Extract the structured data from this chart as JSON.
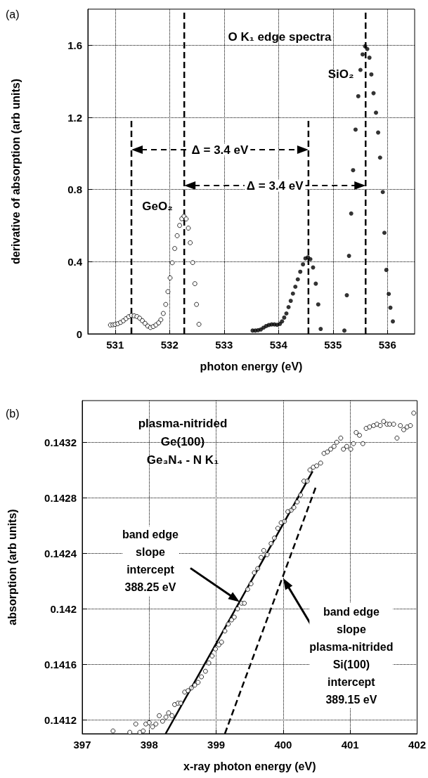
{
  "chart_data": [
    {
      "type": "scatter",
      "title": "O K₁ edge spectra",
      "xlabel": "photon energy (eV)",
      "ylabel": "derivative of absorption (arb units)",
      "xlim": [
        530.5,
        536.5
      ],
      "xticks": [
        531,
        532,
        533,
        534,
        535,
        536
      ],
      "ylim": [
        0,
        1.8
      ],
      "yticks": [
        0,
        0.4,
        0.8,
        1.2,
        1.6
      ],
      "grid": true,
      "marker": "circle",
      "annotations": [
        "(a)",
        "Δ = 3.4 eV",
        "Δ = 3.4 eV"
      ],
      "series": [
        {
          "name": "GeO₂",
          "color": "#000000",
          "x": [
            530.915,
            530.96,
            531.0,
            531.05,
            531.1,
            531.15,
            531.2,
            531.25,
            531.3,
            531.35,
            531.4,
            531.45,
            531.5,
            531.55,
            531.6,
            531.65,
            531.7,
            531.75,
            531.8,
            531.84,
            531.885,
            531.93,
            531.97,
            532.01,
            532.05,
            532.095,
            532.14,
            532.185,
            532.225,
            532.265,
            532.305,
            532.345,
            532.38,
            532.425,
            532.465,
            532.495,
            532.54
          ],
          "values": [
            0.049,
            0.05,
            0.052,
            0.056,
            0.063,
            0.072,
            0.084,
            0.095,
            0.102,
            0.1,
            0.096,
            0.087,
            0.073,
            0.058,
            0.043,
            0.035,
            0.04,
            0.049,
            0.061,
            0.078,
            0.113,
            0.163,
            0.234,
            0.31,
            0.394,
            0.473,
            0.544,
            0.601,
            0.638,
            0.652,
            0.637,
            0.586,
            0.505,
            0.395,
            0.278,
            0.163,
            0.053
          ]
        },
        {
          "name": "SiO₂",
          "color": "#000000",
          "x": [
            533.525,
            533.575,
            533.625,
            533.675,
            533.725,
            533.775,
            533.825,
            533.875,
            533.925,
            533.975,
            534.025,
            534.065,
            534.105,
            534.145,
            534.185,
            534.225,
            534.265,
            534.31,
            534.355,
            534.4,
            534.45,
            534.495,
            534.54,
            534.585,
            534.635,
            534.685,
            534.73,
            534.775,
            535.21,
            535.255,
            535.295,
            535.335,
            535.37,
            535.415,
            535.465,
            535.505,
            535.545,
            535.59,
            535.63,
            535.67,
            535.705,
            535.745,
            535.79,
            535.83,
            535.865,
            535.915,
            535.945,
            535.98,
            536.025,
            536.055,
            536.1
          ],
          "values": [
            0.018,
            0.018,
            0.02,
            0.024,
            0.034,
            0.043,
            0.049,
            0.052,
            0.052,
            0.05,
            0.055,
            0.069,
            0.09,
            0.113,
            0.148,
            0.183,
            0.223,
            0.261,
            0.302,
            0.344,
            0.385,
            0.418,
            0.424,
            0.414,
            0.368,
            0.278,
            0.163,
            0.027,
            0.018,
            0.214,
            0.432,
            0.667,
            0.907,
            1.132,
            1.317,
            1.463,
            1.549,
            1.594,
            1.579,
            1.531,
            1.438,
            1.334,
            1.226,
            1.116,
            0.977,
            0.786,
            0.56,
            0.354,
            0.221,
            0.145,
            0.069
          ]
        },
        {
          "type": "line",
          "color": "#000000",
          "marker": "none",
          "line_style": "dashed",
          "x": [
            531.3,
            531.3
          ],
          "values": [
            0,
            1.2
          ]
        },
        {
          "type": "line",
          "color": "#000000",
          "marker": "none",
          "line_style": "dashed",
          "x": [
            532.27,
            532.27
          ],
          "values": [
            0,
            1.8
          ]
        },
        {
          "type": "line",
          "color": "#000000",
          "marker": "none",
          "line_style": "dashed",
          "x": [
            534.55,
            534.55
          ],
          "values": [
            0,
            1.2
          ]
        },
        {
          "type": "line",
          "color": "#000000",
          "marker": "none",
          "line_style": "dashed",
          "x": [
            535.6,
            535.6
          ],
          "values": [
            0,
            1.8
          ]
        }
      ]
    },
    {
      "type": "scatter",
      "title": "plasma-nitrided\nGe(100)\nGe₃N₄ - N K₁",
      "xlabel": "x-ray photon energy (eV)",
      "ylabel": "absorption (arb units)",
      "xlim": [
        397,
        402
      ],
      "xticks": [
        397,
        398,
        399,
        400,
        401,
        402
      ],
      "ylim": [
        0.1411,
        0.1435
      ],
      "yticks": [
        0.1412,
        0.1416,
        0.142,
        0.1424,
        0.1428,
        0.1432
      ],
      "grid": true,
      "marker": "circle",
      "annotations": [
        "(b)",
        {
          "text": "band edge\nslope\nintercept\n388.25 eV",
          "x": 399.35,
          "y": 0.14205
        },
        {
          "text": "band edge\nslope\nplasma-nitrided\nSi(100)\nintercept\n389.15 eV",
          "x": 400.0,
          "y": 0.14222
        }
      ],
      "series": [
        {
          "color": "#000000",
          "x": [
            397.46,
            397.71,
            397.8,
            397.86,
            397.91,
            397.95,
            398.0,
            398.05,
            398.1,
            398.15,
            398.2,
            398.25,
            398.29,
            398.34,
            398.38,
            398.43,
            398.47,
            398.53,
            398.58,
            398.63,
            398.68,
            398.73,
            398.78,
            398.84,
            398.89,
            398.94,
            398.99,
            399.04,
            399.08,
            399.13,
            399.18,
            399.23,
            399.27,
            399.32,
            399.38,
            399.42,
            399.47,
            399.52,
            399.57,
            399.62,
            399.67,
            399.71,
            399.76,
            399.82,
            399.87,
            399.92,
            399.97,
            400.02,
            400.07,
            400.12,
            400.16,
            400.21,
            400.26,
            400.31,
            400.36,
            400.4,
            400.45,
            400.5,
            400.56,
            400.61,
            400.66,
            400.71,
            400.76,
            400.8,
            400.86,
            400.9,
            400.95,
            401.01,
            401.05,
            401.09,
            401.14,
            401.19,
            401.24,
            401.29,
            401.35,
            401.4,
            401.45,
            401.5,
            401.55,
            401.59,
            401.65,
            401.7,
            401.75,
            401.8,
            401.85,
            401.9,
            401.95
          ],
          "values": [
            0.14112,
            0.14111,
            0.14117,
            0.14111,
            0.14112,
            0.14117,
            0.14118,
            0.14115,
            0.14117,
            0.14123,
            0.14119,
            0.14122,
            0.14125,
            0.14123,
            0.14131,
            0.14132,
            0.14132,
            0.1414,
            0.14141,
            0.14143,
            0.14145,
            0.14147,
            0.14151,
            0.14155,
            0.14161,
            0.14166,
            0.14171,
            0.14174,
            0.14176,
            0.14184,
            0.14189,
            0.14192,
            0.14194,
            0.142,
            0.14204,
            0.14204,
            0.14214,
            0.14218,
            0.14226,
            0.14229,
            0.14237,
            0.14242,
            0.14239,
            0.14247,
            0.14251,
            0.14258,
            0.14262,
            0.14263,
            0.1427,
            0.14271,
            0.14273,
            0.14277,
            0.14282,
            0.14292,
            0.14292,
            0.143,
            0.14302,
            0.14303,
            0.14305,
            0.14312,
            0.14313,
            0.14315,
            0.14317,
            0.1432,
            0.14323,
            0.14315,
            0.14317,
            0.14315,
            0.14319,
            0.14327,
            0.14325,
            0.14319,
            0.1433,
            0.14331,
            0.14332,
            0.14333,
            0.14332,
            0.14335,
            0.14333,
            0.14333,
            0.14333,
            0.14323,
            0.14332,
            0.14329,
            0.14331,
            0.14332,
            0.14341
          ]
        },
        {
          "type": "line",
          "color": "#000000",
          "marker": "none",
          "line_style": "solid",
          "x": [
            398.245,
            400.44
          ],
          "values": [
            0.1411,
            0.14299
          ]
        },
        {
          "type": "line",
          "color": "#000000",
          "marker": "none",
          "line_style": "dashed",
          "x": [
            399.13,
            400.49
          ],
          "values": [
            0.1411,
            0.14288
          ]
        }
      ]
    }
  ]
}
